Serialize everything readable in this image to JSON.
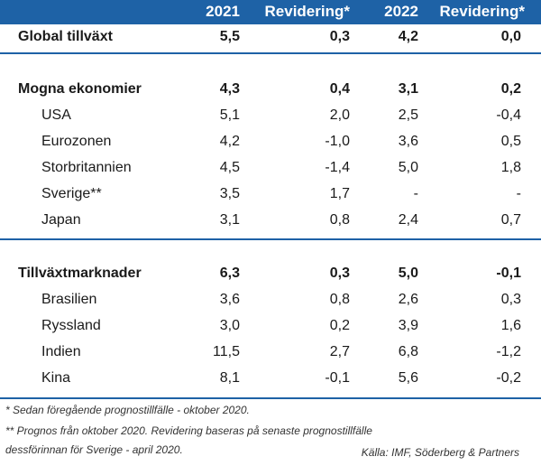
{
  "header": {
    "col1": "2021",
    "col2": "Revidering*",
    "col3": "2022",
    "col4": "Revidering*"
  },
  "rows": [
    {
      "label": "Global tillväxt",
      "v2021": "5,5",
      "rev2021": "0,3",
      "v2022": "4,2",
      "rev2022": "0,0"
    },
    {
      "label": "Mogna ekonomier",
      "v2021": "4,3",
      "rev2021": "0,4",
      "v2022": "3,1",
      "rev2022": "0,2"
    },
    {
      "label": "USA",
      "v2021": "5,1",
      "rev2021": "2,0",
      "v2022": "2,5",
      "rev2022": "-0,4"
    },
    {
      "label": "Eurozonen",
      "v2021": "4,2",
      "rev2021": "-1,0",
      "v2022": "3,6",
      "rev2022": "0,5"
    },
    {
      "label": "Storbritannien",
      "v2021": "4,5",
      "rev2021": "-1,4",
      "v2022": "5,0",
      "rev2022": "1,8"
    },
    {
      "label": "Sverige**",
      "v2021": "3,5",
      "rev2021": "1,7",
      "v2022": "-",
      "rev2022": "-"
    },
    {
      "label": "Japan",
      "v2021": "3,1",
      "rev2021": "0,8",
      "v2022": "2,4",
      "rev2022": "0,7"
    },
    {
      "label": "Tillväxtmarknader",
      "v2021": "6,3",
      "rev2021": "0,3",
      "v2022": "5,0",
      "rev2022": "-0,1"
    },
    {
      "label": "Brasilien",
      "v2021": "3,6",
      "rev2021": "0,8",
      "v2022": "2,6",
      "rev2022": "0,3"
    },
    {
      "label": "Ryssland",
      "v2021": "3,0",
      "rev2021": "0,2",
      "v2022": "3,9",
      "rev2022": "1,6"
    },
    {
      "label": "Indien",
      "v2021": "11,5",
      "rev2021": "2,7",
      "v2022": "6,8",
      "rev2022": "-1,2"
    },
    {
      "label": "Kina",
      "v2021": "8,1",
      "rev2021": "-0,1",
      "v2022": "5,6",
      "rev2022": "-0,2"
    }
  ],
  "footnotes": {
    "note1": "* Sedan föregående prognostillfälle - oktober 2020.",
    "note2_line1": "** Prognos från oktober 2020. Revidering baseras på senaste prognostillfälle",
    "note2_line2": "dessförinnan för Sverige - april 2020.",
    "source": "Källa: IMF, Söderberg & Partners"
  },
  "colors": {
    "header_bg": "#1e62a6",
    "rule": "#1e62a6"
  }
}
